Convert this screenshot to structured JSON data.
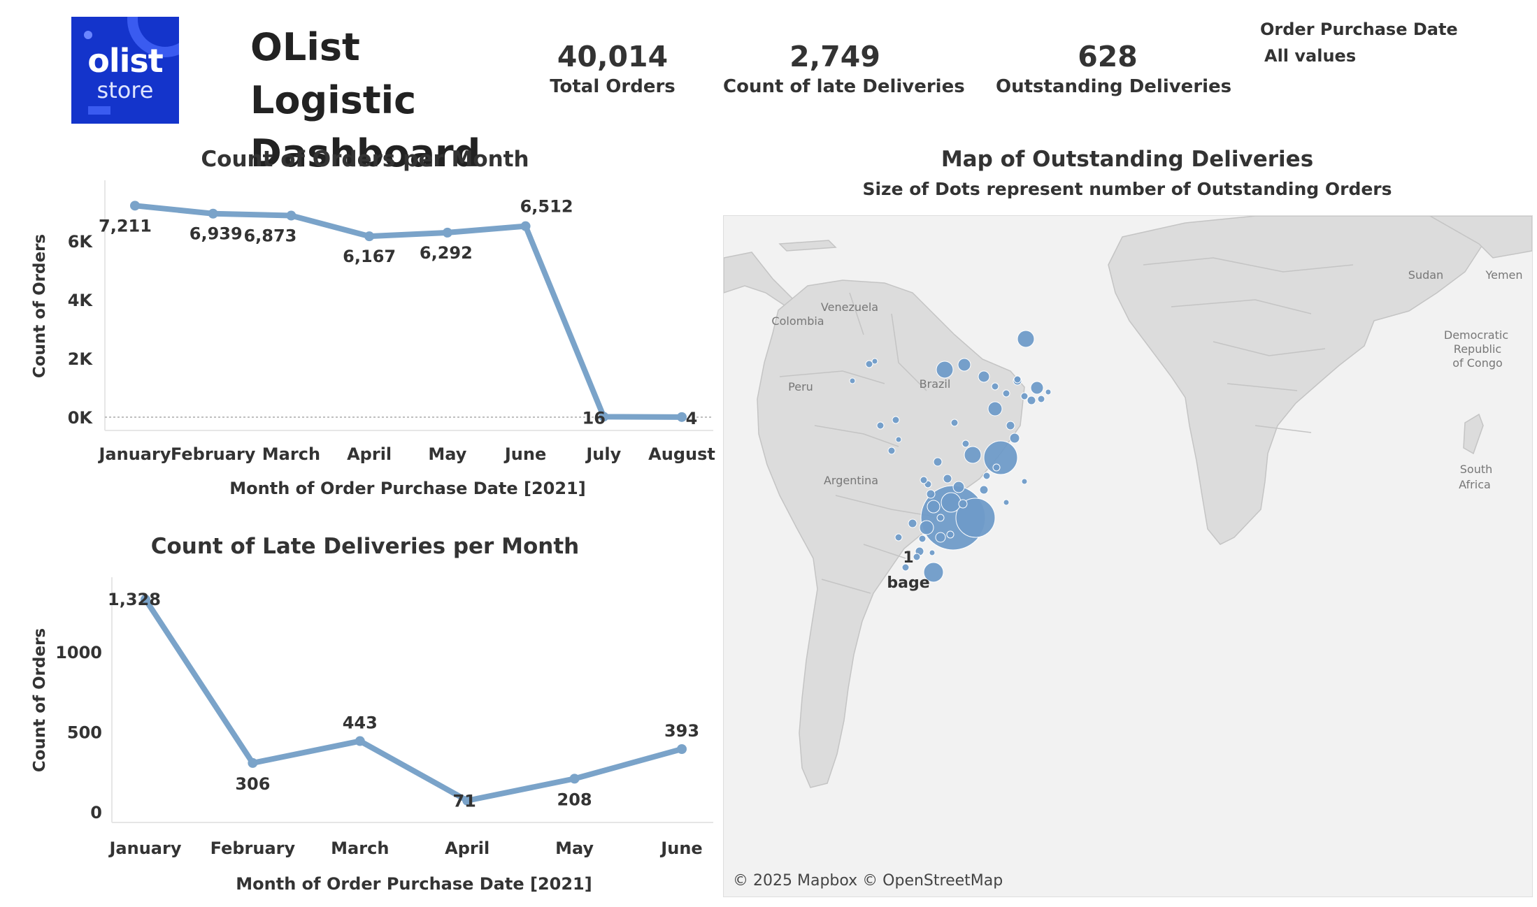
{
  "dashboard": {
    "title": "OList Logistic Dashboard",
    "logo": {
      "line1": "olist",
      "line2": "store"
    },
    "colors": {
      "line": "#7aa3c9",
      "logo_bg": "#1434cb",
      "dot": "#6f9bc8",
      "land": "#dcdcdc",
      "ocean": "#f2f2f2"
    }
  },
  "kpis": [
    {
      "value": "40,014",
      "label": "Total Orders"
    },
    {
      "value": "2,749",
      "label": "Count of late Deliveries"
    },
    {
      "value": "628",
      "label": "Outstanding Deliveries"
    }
  ],
  "filter": {
    "label": "Order Purchase Date",
    "value": "All values"
  },
  "orders_chart": {
    "title": "Count of Orders per Month",
    "chart_data": {
      "type": "line",
      "title": "Count of Orders per Month",
      "xlabel": "Month of Order Purchase Date [2021]",
      "ylabel": "Count of Orders",
      "categories": [
        "January",
        "February",
        "March",
        "April",
        "May",
        "June",
        "July",
        "August"
      ],
      "values": [
        7211,
        6939,
        6873,
        6167,
        6292,
        6512,
        16,
        4
      ],
      "data_labels": [
        "7,211",
        "6,939",
        "6,873",
        "6,167",
        "6,292",
        "6,512",
        "16",
        "4"
      ],
      "y_ticks": [
        0,
        2000,
        4000,
        6000
      ],
      "y_tick_labels": [
        "0K",
        "2K",
        "4K",
        "6K"
      ],
      "ylim": [
        0,
        7600
      ],
      "grid": false
    }
  },
  "late_chart": {
    "title": "Count of Late Deliveries per Month",
    "chart_data": {
      "type": "line",
      "title": "Count of Late Deliveries per Month",
      "xlabel": "Month of Order Purchase Date [2021]",
      "ylabel": "Count of Orders",
      "categories": [
        "January",
        "February",
        "March",
        "April",
        "May",
        "June"
      ],
      "values": [
        1328,
        306,
        443,
        71,
        208,
        393
      ],
      "data_labels": [
        "1,328",
        "306",
        "443",
        "71",
        "208",
        "393"
      ],
      "y_ticks": [
        0,
        500,
        1000
      ],
      "y_tick_labels": [
        "0",
        "500",
        "1000"
      ],
      "ylim": [
        0,
        1380
      ],
      "grid": false
    }
  },
  "map": {
    "title": "Map of Outstanding Deliveries",
    "subtitle": "Size of Dots represent number of Outstanding Orders",
    "labels": [
      "Venezuela",
      "Colombia",
      "Peru",
      "Brazil",
      "Argentina",
      "Sudan",
      "Yemen",
      "Democratic",
      "Republic",
      "of Congo",
      "South",
      "Africa"
    ],
    "tooltip": {
      "value": "1",
      "label": "bage"
    },
    "credit": "© 2025 Mapbox © OpenStreetMap"
  }
}
